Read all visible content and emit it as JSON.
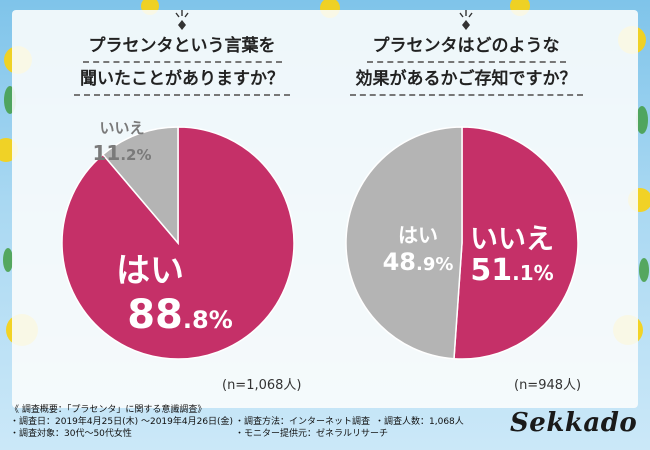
{
  "questions": {
    "left": {
      "line1": "プラセンタという言葉を",
      "line2": "聞いたことがありますか？"
    },
    "right": {
      "line1": "プラセンタはどのような",
      "line2": "効果があるかご存知ですか？"
    }
  },
  "chart_data": [
    {
      "type": "pie",
      "title": "プラセンタという言葉を聞いたことがありますか？",
      "sample_size": "(n=1,068人)",
      "slices": [
        {
          "label": "はい",
          "value": 88.8,
          "display_int": "88",
          "display_dec": ".8%",
          "color": "#c53068"
        },
        {
          "label": "いいえ",
          "value": 11.2,
          "display_int": "11",
          "display_dec": ".2%",
          "color": "#b4b4b4"
        }
      ]
    },
    {
      "type": "pie",
      "title": "プラセンタはどのような効果があるかご存知ですか？",
      "sample_size": "(n=948人)",
      "slices": [
        {
          "label": "いいえ",
          "value": 51.1,
          "display_int": "51",
          "display_dec": ".1%",
          "color": "#c53068"
        },
        {
          "label": "はい",
          "value": 48.9,
          "display_int": "48",
          "display_dec": ".9%",
          "color": "#b4b4b4"
        }
      ]
    }
  ],
  "footer": {
    "summary_title": "《 調査概要：「プラセンタ」に関する意識調査》",
    "date": "・調査日：2019年4月25日(木) ～2019年4月26日(金)",
    "method": "・調査方法：インターネット調査",
    "count": "・調査人数：1,068人",
    "target": "・調査対象：30代～50代女性",
    "provider": "・モニター提供元：ゼネラルリサーチ"
  },
  "brand": "Sekkado"
}
